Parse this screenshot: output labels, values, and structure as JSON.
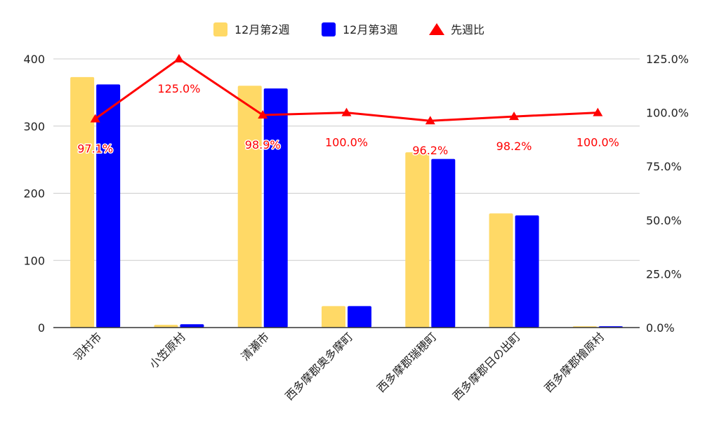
{
  "chart_data": {
    "type": "bar",
    "categories": [
      "羽村市",
      "小笠原村",
      "清瀬市",
      "西多摩郡奥多摩町",
      "西多摩郡瑞穂町",
      "西多摩郡日の出町",
      "西多摩郡檜原村"
    ],
    "series": [
      {
        "name": "12月第2週",
        "type": "bar",
        "axis": "left",
        "color": "#FFD966",
        "values": [
          373,
          4,
          360,
          32,
          261,
          170,
          2
        ]
      },
      {
        "name": "12月第3週",
        "type": "bar",
        "axis": "left",
        "color": "#0000FF",
        "values": [
          362,
          5,
          356,
          32,
          251,
          167,
          2
        ]
      },
      {
        "name": "先週比",
        "type": "line",
        "axis": "right",
        "color": "#FF0000",
        "marker": "triangle",
        "values": [
          0.971,
          1.25,
          0.989,
          1.0,
          0.962,
          0.982,
          1.0
        ],
        "labels": [
          "97.1%",
          "125.0%",
          "98.9%",
          "100.0%",
          "96.2%",
          "98.2%",
          "100.0%"
        ]
      }
    ],
    "y_left": {
      "ylim": [
        0,
        400
      ],
      "ticks": [
        "0",
        "100",
        "200",
        "300",
        "400"
      ]
    },
    "y_right": {
      "ylim": [
        0,
        1.25
      ],
      "ticks": [
        "0.0%",
        "25.0%",
        "50.0%",
        "75.0%",
        "100.0%",
        "125.0%"
      ]
    },
    "grid": true,
    "legend": "top",
    "title": "",
    "xlabel": "",
    "ylabel": ""
  }
}
